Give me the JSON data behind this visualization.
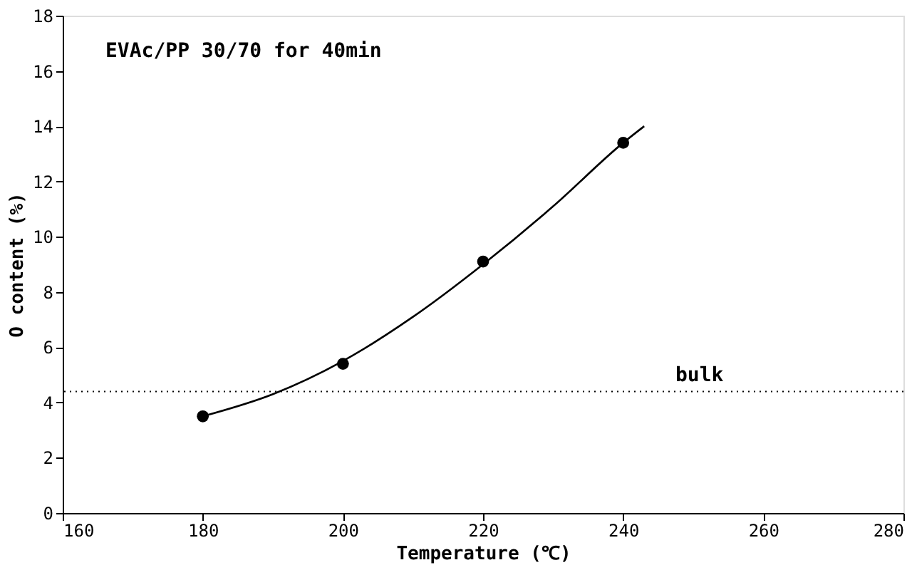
{
  "chart_data": {
    "type": "scatter",
    "xlabel": "Temperature (℃)",
    "ylabel": "O content (%)",
    "annotations": [
      "EVAc/PP 30/70 for 40min"
    ],
    "xlim": [
      160,
      280
    ],
    "xticks": [
      160,
      180,
      200,
      220,
      240,
      260,
      280
    ],
    "ylim": [
      0,
      18
    ],
    "yticks": [
      0,
      2,
      4,
      6,
      8,
      10,
      12,
      14,
      16,
      18
    ],
    "grid": false,
    "series": [
      {
        "color": "#000000",
        "marker": "circle",
        "x": [
          180,
          200,
          220,
          240
        ],
        "values": [
          3.5,
          5.4,
          9.1,
          13.4
        ]
      },
      {
        "type": "line",
        "color": "#000000",
        "marker": "none",
        "line_style": "solid",
        "x": [
          180,
          190,
          200,
          210,
          220,
          230,
          240,
          243
        ],
        "values": [
          3.5,
          4.3,
          5.5,
          7.1,
          9.0,
          11.1,
          13.4,
          14.0
        ]
      }
    ],
    "ref_lines": [
      {
        "axis": "y",
        "value": 4.4,
        "label": "bulk",
        "color": "#000000",
        "line_style": "dotted"
      }
    ]
  }
}
